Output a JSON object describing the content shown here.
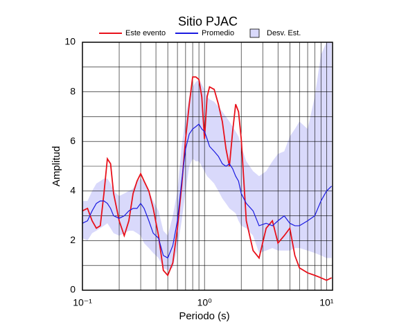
{
  "chart_data": {
    "type": "line",
    "title": "Sitio PJAC",
    "xlabel": "Periodo (s)",
    "ylabel": "Amplitud",
    "xscale": "log",
    "grid": true,
    "xlim": [
      0.1,
      11.2
    ],
    "ylim": [
      0,
      10
    ],
    "xticks": [
      {
        "value": 0.1,
        "label": "10⁻¹"
      },
      {
        "value": 1,
        "label": "10⁰"
      },
      {
        "value": 10,
        "label": "10¹"
      }
    ],
    "xminor": [
      0.2,
      0.3,
      0.4,
      0.5,
      0.6,
      0.7,
      0.8,
      0.9,
      2,
      3,
      4,
      5,
      6,
      7,
      8,
      9
    ],
    "yticks": [
      0,
      2,
      4,
      6,
      8,
      10
    ],
    "yminor": [
      1,
      3,
      5,
      7,
      9
    ],
    "x": [
      0.1,
      0.11,
      0.12,
      0.13,
      0.14,
      0.15,
      0.16,
      0.17,
      0.18,
      0.2,
      0.22,
      0.24,
      0.26,
      0.28,
      0.3,
      0.32,
      0.35,
      0.38,
      0.42,
      0.46,
      0.5,
      0.55,
      0.6,
      0.65,
      0.7,
      0.75,
      0.8,
      0.85,
      0.9,
      0.95,
      1.0,
      1.05,
      1.1,
      1.2,
      1.3,
      1.4,
      1.5,
      1.6,
      1.7,
      1.8,
      1.9,
      2.0,
      2.2,
      2.5,
      2.8,
      3.2,
      3.6,
      4.0,
      4.5,
      5.0,
      5.5,
      6.0,
      7.0,
      8.0,
      9.0,
      10,
      11
    ],
    "band": {
      "name": "Desv. Est.",
      "color": "#d9d9fb",
      "upper": [
        3.6,
        3.6,
        4.0,
        4.3,
        4.4,
        4.5,
        4.5,
        4.3,
        4.0,
        3.8,
        3.9,
        4.0,
        4.1,
        4.4,
        4.5,
        4.4,
        4.0,
        3.6,
        3.2,
        2.4,
        2.2,
        3.0,
        4.0,
        5.8,
        7.0,
        7.8,
        8.2,
        8.4,
        8.5,
        8.3,
        8.1,
        7.8,
        7.7,
        7.6,
        7.4,
        7.2,
        7.0,
        6.8,
        6.6,
        6.4,
        6.2,
        5.8,
        5.2,
        4.8,
        4.6,
        4.8,
        5.2,
        5.5,
        5.6,
        6.2,
        6.5,
        6.8,
        6.5,
        7.8,
        9.5,
        10,
        10
      ],
      "lower": [
        2.1,
        2.0,
        2.3,
        2.4,
        2.5,
        2.6,
        2.7,
        2.5,
        2.3,
        2.2,
        2.3,
        2.4,
        2.4,
        2.3,
        2.2,
        1.9,
        1.7,
        1.5,
        1.3,
        0.9,
        0.8,
        0.9,
        1.7,
        2.8,
        4.0,
        5.0,
        5.3,
        5.2,
        5.2,
        5.0,
        4.8,
        4.6,
        4.5,
        4.3,
        4.0,
        3.7,
        3.5,
        3.3,
        3.2,
        3.1,
        2.8,
        2.6,
        2.5,
        2.2,
        1.5,
        1.6,
        1.7,
        1.6,
        1.6,
        1.6,
        1.7,
        1.7,
        1.6,
        1.5,
        1.4,
        1.3,
        1.3
      ]
    },
    "series": [
      {
        "name": "Este evento",
        "color": "#e8101a",
        "values": [
          3.2,
          3.3,
          2.8,
          2.5,
          2.6,
          3.9,
          5.3,
          5.1,
          3.9,
          2.8,
          2.2,
          2.8,
          3.9,
          4.4,
          4.7,
          4.4,
          4.0,
          3.3,
          2.2,
          0.8,
          0.6,
          1.1,
          2.5,
          4.2,
          6.1,
          7.5,
          8.6,
          8.6,
          8.5,
          7.8,
          6.1,
          7.8,
          8.2,
          8.1,
          7.5,
          6.8,
          5.7,
          5.0,
          6.4,
          7.5,
          7.2,
          6.1,
          2.8,
          1.6,
          1.3,
          2.5,
          2.8,
          1.9,
          2.2,
          2.5,
          1.4,
          0.9,
          0.7,
          0.6,
          0.5,
          0.4,
          0.5
        ]
      },
      {
        "name": "Promedio",
        "color": "#1a1ae0",
        "values": [
          2.7,
          2.8,
          3.2,
          3.5,
          3.6,
          3.6,
          3.5,
          3.3,
          3.0,
          2.9,
          3.0,
          3.2,
          3.3,
          3.3,
          3.5,
          3.3,
          2.8,
          2.3,
          2.1,
          1.4,
          1.3,
          1.8,
          2.8,
          4.4,
          5.7,
          6.3,
          6.5,
          6.6,
          6.7,
          6.5,
          6.4,
          6.1,
          5.8,
          5.6,
          5.4,
          5.1,
          5.0,
          5.1,
          4.9,
          4.6,
          4.4,
          3.9,
          3.5,
          3.2,
          2.6,
          2.7,
          2.6,
          2.8,
          3.0,
          2.7,
          2.6,
          2.6,
          2.8,
          3.0,
          3.6,
          4.0,
          4.2
        ]
      }
    ]
  }
}
